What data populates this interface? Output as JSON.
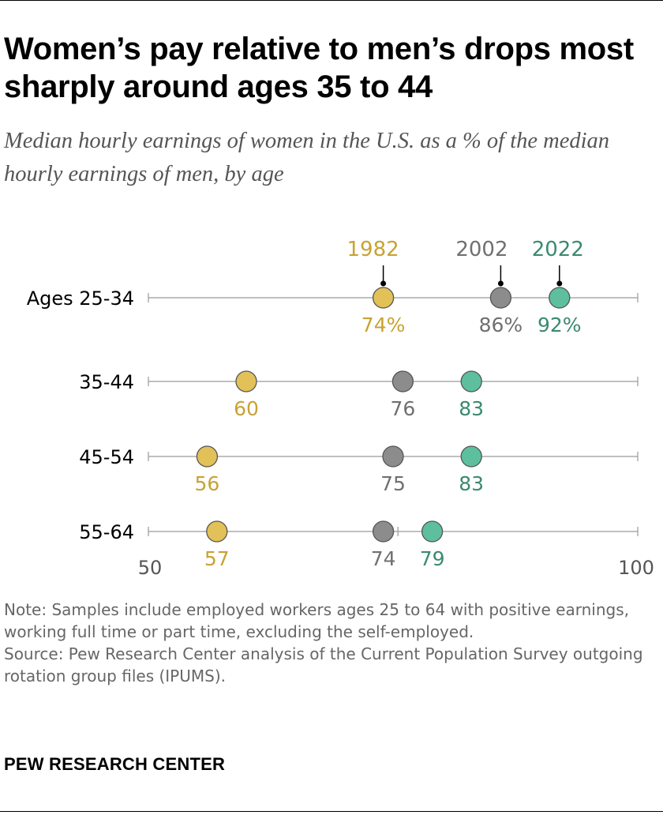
{
  "title": "Women’s pay relative to men’s drops most sharply around ages 35 to 44",
  "subtitle": "Median hourly earnings of women in the U.S. as a % of the median hourly earnings of men, by age",
  "chart_data": {
    "type": "dot",
    "categories": [
      "Ages 25-34",
      "35-44",
      "45-54",
      "55-64"
    ],
    "series": [
      {
        "name": "1982",
        "color": "#E3C159",
        "values": [
          74,
          60,
          56,
          57
        ],
        "labels": [
          "74%",
          "60",
          "56",
          "57"
        ],
        "label_color": "#C9A233"
      },
      {
        "name": "2002",
        "color": "#8C8C8C",
        "values": [
          86,
          76,
          75,
          74
        ],
        "labels": [
          "86%",
          "76",
          "75",
          "74"
        ],
        "label_color": "#707070"
      },
      {
        "name": "2022",
        "color": "#5DBF9E",
        "values": [
          92,
          83,
          83,
          79
        ],
        "labels": [
          "92%",
          "83",
          "83",
          "79"
        ],
        "label_color": "#3B8A6E"
      }
    ],
    "xlim": [
      50,
      100
    ],
    "axis_labels": [
      "50",
      "100"
    ],
    "legend_placement": "above first row"
  },
  "note": "Note: Samples include employed workers ages 25 to 64 with positive earnings, working full time or part time, excluding the self-employed.",
  "source": "Source: Pew Research Center analysis of the Current Population Survey outgoing rotation group files (IPUMS).",
  "brand": "PEW RESEARCH CENTER"
}
